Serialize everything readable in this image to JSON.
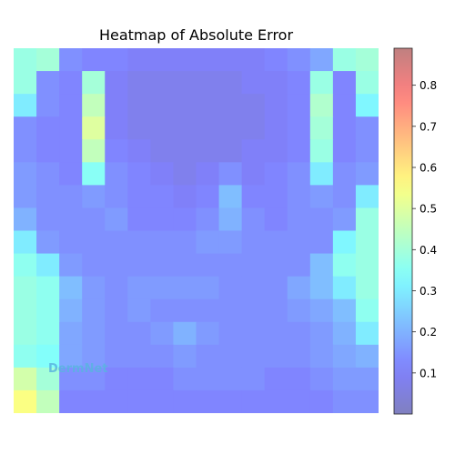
{
  "chart_data": {
    "type": "heatmap",
    "title": "Heatmap of Absolute Error",
    "xlabel": "",
    "ylabel": "",
    "colorbar": {
      "range": [
        0.0,
        0.89
      ],
      "ticks": [
        0.1,
        0.2,
        0.3,
        0.4,
        0.5,
        0.6,
        0.7,
        0.8
      ],
      "tick_labels": [
        "0.1",
        "0.2",
        "0.3",
        "0.4",
        "0.5",
        "0.6",
        "0.7",
        "0.8"
      ],
      "colormap": "jet",
      "alpha": 0.5
    },
    "axes_visible": false,
    "grid": false,
    "overlay_text": {
      "watermark": "DermNet"
    },
    "grid_values": [
      [
        0.38,
        0.4,
        0.14,
        0.12,
        0.12,
        0.1,
        0.1,
        0.1,
        0.1,
        0.1,
        0.1,
        0.12,
        0.14,
        0.18,
        0.38,
        0.4
      ],
      [
        0.38,
        0.14,
        0.12,
        0.4,
        0.1,
        0.08,
        0.08,
        0.08,
        0.08,
        0.08,
        0.1,
        0.1,
        0.12,
        0.38,
        0.12,
        0.38
      ],
      [
        0.3,
        0.14,
        0.12,
        0.45,
        0.1,
        0.08,
        0.08,
        0.08,
        0.08,
        0.08,
        0.08,
        0.1,
        0.12,
        0.42,
        0.12,
        0.32
      ],
      [
        0.14,
        0.12,
        0.12,
        0.5,
        0.1,
        0.08,
        0.08,
        0.08,
        0.08,
        0.08,
        0.08,
        0.1,
        0.12,
        0.4,
        0.12,
        0.14
      ],
      [
        0.14,
        0.12,
        0.12,
        0.45,
        0.12,
        0.1,
        0.08,
        0.08,
        0.08,
        0.08,
        0.1,
        0.1,
        0.12,
        0.38,
        0.12,
        0.14
      ],
      [
        0.16,
        0.14,
        0.12,
        0.35,
        0.14,
        0.12,
        0.1,
        0.08,
        0.1,
        0.14,
        0.1,
        0.12,
        0.14,
        0.3,
        0.14,
        0.16
      ],
      [
        0.16,
        0.14,
        0.14,
        0.16,
        0.14,
        0.12,
        0.12,
        0.1,
        0.12,
        0.22,
        0.12,
        0.12,
        0.14,
        0.16,
        0.14,
        0.3
      ],
      [
        0.2,
        0.14,
        0.14,
        0.14,
        0.16,
        0.12,
        0.12,
        0.12,
        0.14,
        0.2,
        0.14,
        0.12,
        0.14,
        0.14,
        0.16,
        0.38
      ],
      [
        0.3,
        0.16,
        0.14,
        0.14,
        0.14,
        0.14,
        0.14,
        0.14,
        0.16,
        0.16,
        0.14,
        0.14,
        0.14,
        0.14,
        0.32,
        0.38
      ],
      [
        0.36,
        0.3,
        0.16,
        0.14,
        0.14,
        0.14,
        0.14,
        0.14,
        0.14,
        0.14,
        0.14,
        0.14,
        0.14,
        0.22,
        0.36,
        0.38
      ],
      [
        0.38,
        0.36,
        0.22,
        0.16,
        0.14,
        0.16,
        0.16,
        0.16,
        0.16,
        0.14,
        0.14,
        0.14,
        0.18,
        0.22,
        0.3,
        0.38
      ],
      [
        0.38,
        0.36,
        0.2,
        0.16,
        0.14,
        0.16,
        0.14,
        0.14,
        0.14,
        0.14,
        0.14,
        0.14,
        0.16,
        0.18,
        0.22,
        0.36
      ],
      [
        0.38,
        0.36,
        0.18,
        0.16,
        0.14,
        0.14,
        0.16,
        0.2,
        0.16,
        0.14,
        0.14,
        0.14,
        0.14,
        0.16,
        0.2,
        0.3
      ],
      [
        0.36,
        0.34,
        0.18,
        0.16,
        0.14,
        0.14,
        0.14,
        0.16,
        0.14,
        0.14,
        0.14,
        0.14,
        0.14,
        0.16,
        0.18,
        0.2
      ],
      [
        0.48,
        0.4,
        0.14,
        0.14,
        0.12,
        0.12,
        0.12,
        0.14,
        0.14,
        0.14,
        0.14,
        0.12,
        0.12,
        0.14,
        0.16,
        0.16
      ],
      [
        0.55,
        0.45,
        0.12,
        0.12,
        0.12,
        0.12,
        0.12,
        0.12,
        0.12,
        0.12,
        0.12,
        0.12,
        0.12,
        0.12,
        0.14,
        0.14
      ]
    ]
  }
}
